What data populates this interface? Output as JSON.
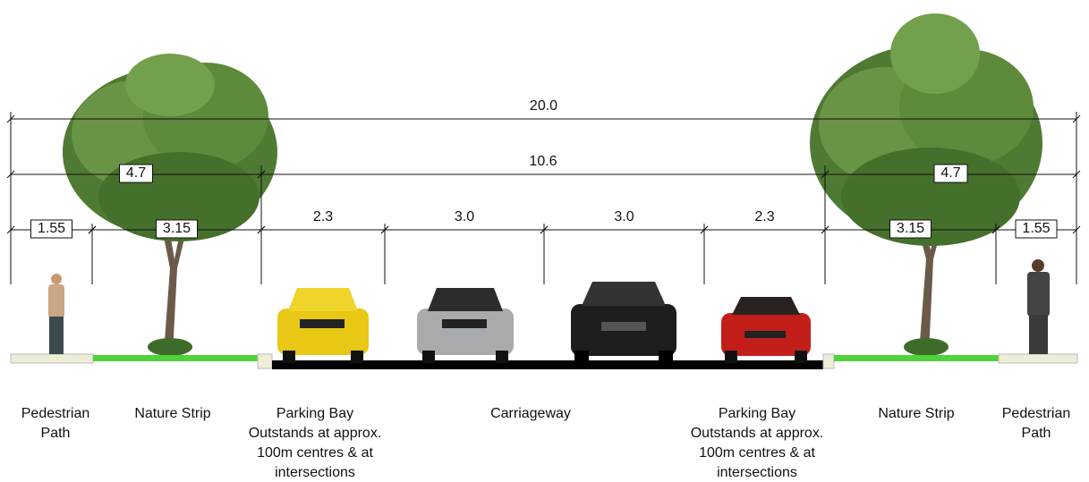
{
  "dimensions": {
    "total": "20.0",
    "verge_left": "4.7",
    "roadway": "10.6",
    "verge_right": "4.7",
    "segments": [
      "1.55",
      "3.15",
      "2.3",
      "3.0",
      "3.0",
      "2.3",
      "3.15",
      "1.55"
    ]
  },
  "zones": [
    {
      "lines": [
        "Pedestrian",
        "Path"
      ]
    },
    {
      "lines": [
        "Nature Strip"
      ]
    },
    {
      "lines": [
        "Parking Bay",
        "Outstands at approx.",
        "100m centres & at",
        "intersections"
      ]
    },
    {
      "lines": [
        "Carriageway"
      ]
    },
    {
      "lines": [
        "Parking Bay",
        "Outstands at approx.",
        "100m centres & at",
        "intersections"
      ]
    },
    {
      "lines": [
        "Nature Strip"
      ]
    },
    {
      "lines": [
        "Pedestrian",
        "Path"
      ]
    }
  ]
}
